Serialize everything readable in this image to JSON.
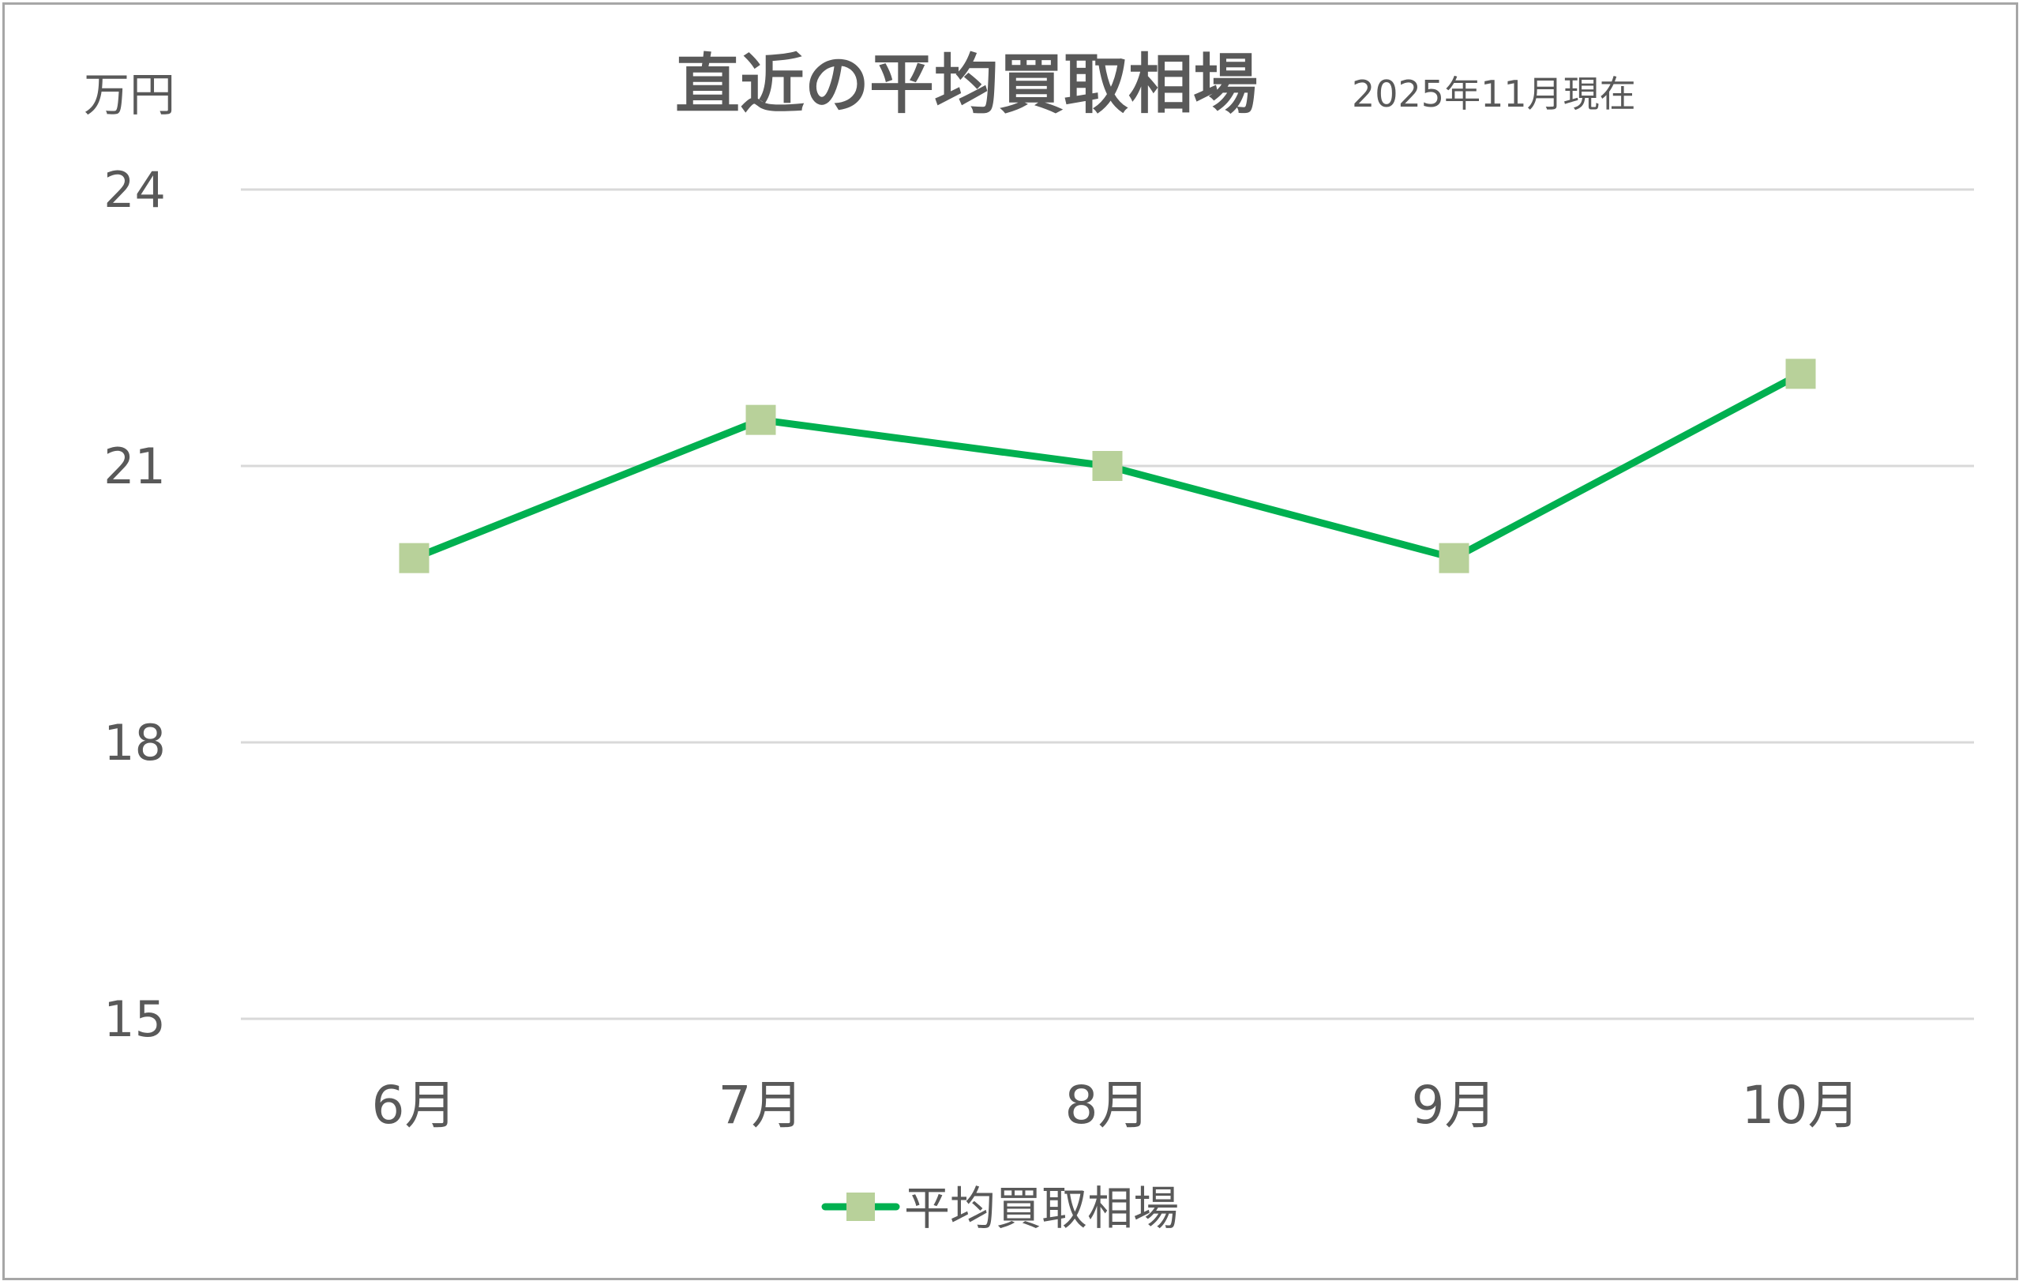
{
  "chart_data": {
    "type": "line",
    "title": "直近の平均買取相場",
    "subtitle": "2025年11月現在",
    "ylabel": "万円",
    "xlabel": "",
    "categories": [
      "6月",
      "7月",
      "8月",
      "9月",
      "10月"
    ],
    "series": [
      {
        "name": "平均買取相場",
        "values": [
          20.0,
          21.5,
          21.0,
          20.0,
          22.0
        ],
        "line_color": "#00b050",
        "marker": "square",
        "marker_color": "#b8d19a"
      }
    ],
    "yticks": [
      "24",
      "21",
      "18",
      "15"
    ],
    "ylim": [
      15,
      24
    ],
    "grid": true,
    "legend_position": "bottom"
  }
}
